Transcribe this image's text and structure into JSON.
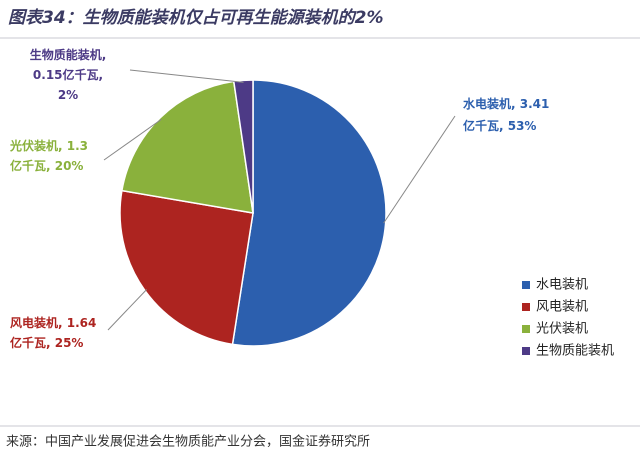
{
  "chart_data": {
    "type": "pie",
    "title": "图表34：生物质能装机仅占可再生能源装机的2%",
    "categories": [
      "水电装机",
      "风电装机",
      "光伏装机",
      "生物质能装机"
    ],
    "values": [
      3.41,
      1.64,
      1.3,
      0.15
    ],
    "value_labels": [
      [
        "水电装机, 3.41",
        "亿千瓦, 53%"
      ],
      [
        "风电装机, 1.64",
        "亿千瓦, 25%"
      ],
      [
        "光伏装机, 1.3",
        "亿千瓦, 20%"
      ],
      [
        "生物质能装机,",
        "0.15亿千瓦,",
        "2%"
      ]
    ],
    "colors": [
      "#2c5fae",
      "#ad2420",
      "#8ab13c",
      "#4d3a86"
    ],
    "legend": "right",
    "source": "来源：中国产业发展促进会生物质能产业分会，国金证券研究所"
  }
}
